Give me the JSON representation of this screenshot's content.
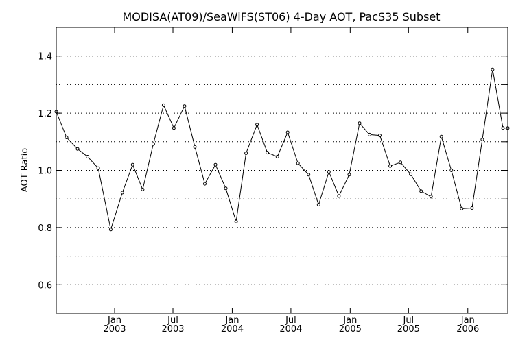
{
  "chart_data": {
    "type": "line",
    "title": "MODISA(AT09)/SeaWiFS(ST06) 4-Day AOT, PacS35 Subset",
    "xlabel": "",
    "ylabel": "AOT Ratio",
    "grid": true,
    "ylim": [
      0.5,
      1.5
    ],
    "yticks": [
      0.6,
      0.8,
      1.0,
      1.2,
      1.4
    ],
    "ytick_labels": [
      "0.6",
      "0.8",
      "1.0",
      "1.2",
      "1.4"
    ],
    "gridlines": [
      0.6,
      0.7,
      0.8,
      0.9,
      1.0,
      1.1,
      1.2,
      1.3,
      1.4
    ],
    "xlim": [
      "2002-07-04",
      "2006-05-05"
    ],
    "xticks": [
      {
        "date": "2003-01-01",
        "month": "Jan",
        "year": "2003"
      },
      {
        "date": "2003-07-01",
        "month": "Jul",
        "year": "2003"
      },
      {
        "date": "2004-01-01",
        "month": "Jan",
        "year": "2004"
      },
      {
        "date": "2004-07-01",
        "month": "Jul",
        "year": "2004"
      },
      {
        "date": "2005-01-01",
        "month": "Jan",
        "year": "2005"
      },
      {
        "date": "2005-07-01",
        "month": "Jul",
        "year": "2005"
      },
      {
        "date": "2006-01-01",
        "month": "Jan",
        "year": "2006"
      }
    ],
    "series": [
      {
        "x": [
          "2002-07-04",
          "2002-08-05",
          "2002-09-08",
          "2002-10-09",
          "2002-11-11",
          "2002-12-20",
          "2003-01-25",
          "2003-02-26",
          "2003-03-29",
          "2003-05-01",
          "2003-06-02",
          "2003-07-04",
          "2003-08-06",
          "2003-09-07",
          "2003-10-08",
          "2003-11-10",
          "2003-12-12",
          "2004-01-13",
          "2004-02-13",
          "2004-03-18",
          "2004-04-19",
          "2004-05-20",
          "2004-06-21",
          "2004-07-23",
          "2004-08-25",
          "2004-09-25",
          "2004-10-27",
          "2004-11-27",
          "2004-12-29",
          "2005-01-30",
          "2005-03-02",
          "2005-04-03",
          "2005-05-05",
          "2005-06-06",
          "2005-07-08",
          "2005-08-09",
          "2005-09-09",
          "2005-10-11",
          "2005-11-11",
          "2005-12-13",
          "2006-01-14",
          "2006-02-15",
          "2006-03-19",
          "2006-04-20",
          "2006-05-05"
        ],
        "values": [
          1.205,
          1.115,
          1.075,
          1.048,
          1.008,
          0.793,
          0.922,
          1.02,
          0.933,
          1.092,
          1.228,
          1.148,
          1.225,
          1.082,
          0.953,
          1.02,
          0.937,
          0.821,
          1.06,
          1.16,
          1.062,
          1.048,
          1.133,
          1.025,
          0.985,
          0.88,
          0.995,
          0.91,
          0.985,
          1.165,
          1.125,
          1.122,
          1.015,
          1.028,
          0.986,
          0.927,
          0.908,
          1.118,
          1.0,
          0.866,
          0.868,
          1.108,
          1.353,
          1.148,
          1.148
        ]
      }
    ]
  }
}
